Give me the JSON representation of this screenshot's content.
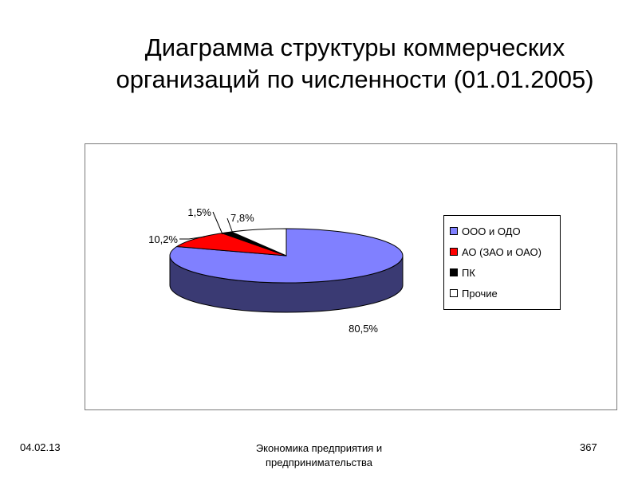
{
  "title": {
    "line1": "Диаграмма структуры коммерческих",
    "line2": "организаций по численности (01.01.2005)"
  },
  "footer": {
    "date": "04.02.13",
    "center_line1": "Экономика предприятия и",
    "center_line2": "предпринимательства",
    "page": "367"
  },
  "chart_data": {
    "type": "pie",
    "style": "3d",
    "categories": [
      "ООО и ОДО",
      "АО (ЗАО и ОАО)",
      "ПК",
      "Прочие"
    ],
    "values": [
      80.5,
      10.2,
      1.5,
      7.8
    ],
    "data_labels": [
      "80,5%",
      "10,2%",
      "1,5%",
      "7,8%"
    ],
    "colors": [
      "#8080ff",
      "#ff0000",
      "#000000",
      "#ffffff"
    ],
    "legend_position": "right"
  }
}
